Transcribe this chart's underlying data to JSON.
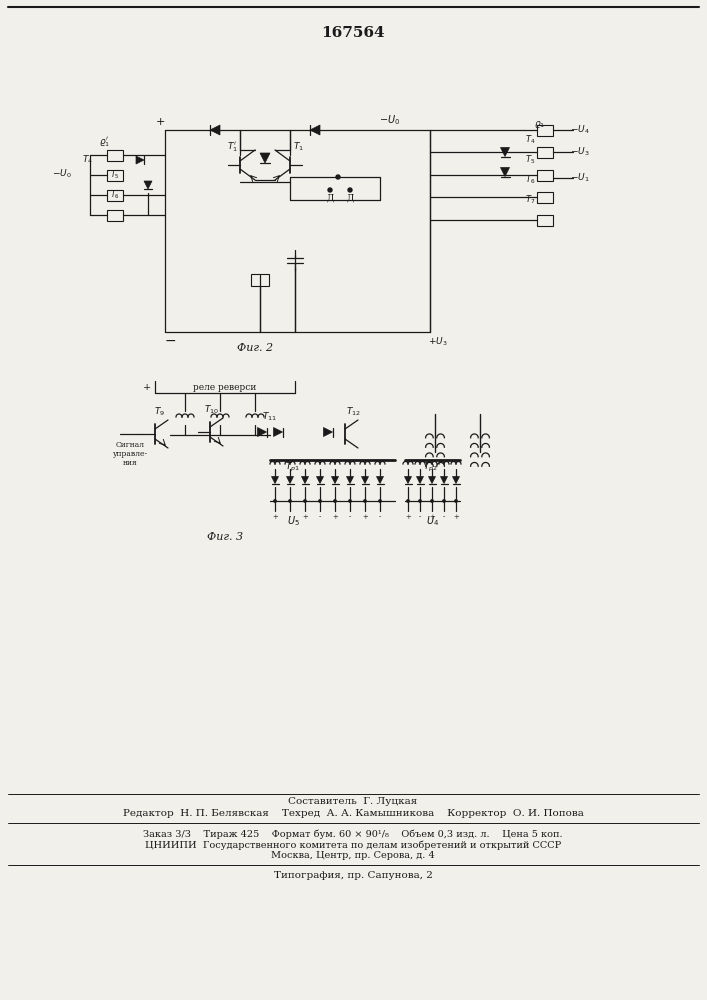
{
  "title": "167564",
  "bg_color": "#f2f0eb",
  "line_color": "#1a1a1a",
  "fig2_caption": "Фиг. 2",
  "fig3_caption": "Фиг. 3",
  "footer_line1": "Составитель  Г. Луцкая",
  "footer_line2": "Редактор  Н. П. Белявская    Техред  А. А. Камышникова    Корректор  О. И. Попова",
  "footer_line3": "Заказ 3/3    Тираж 425    Формат бум. 60 × 90¹/₈    Объем 0,3 изд. л.    Цена 5 коп.",
  "footer_line4": "ЦНИИПИ  Государственного комитета по делам изобретений и открытий СССР",
  "footer_line5": "Москва, Центр, пр. Серова, д. 4",
  "footer_line6": "Типография, пр. Сапунова, 2"
}
